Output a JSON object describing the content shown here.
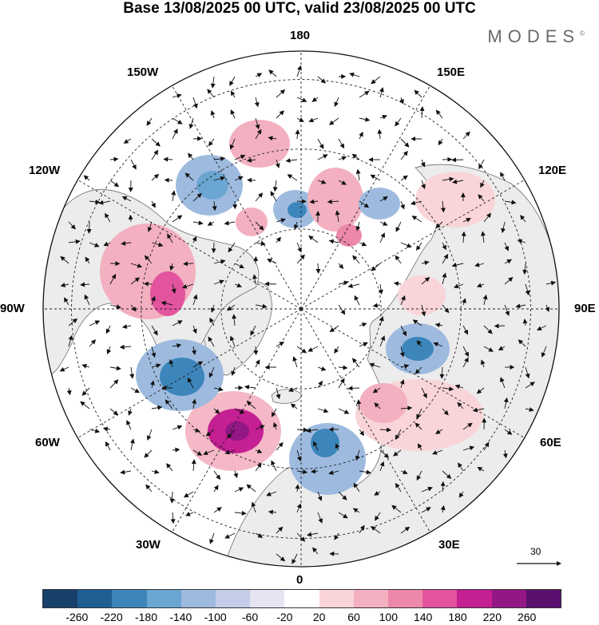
{
  "header": {
    "title": "Base 13/08/2025 00 UTC, valid 23/08/2025 00 UTC",
    "brand": "MODES",
    "brand_mark": "©"
  },
  "longitude_labels": {
    "lon_180": "180",
    "lon_150e": "150E",
    "lon_120e": "120E",
    "lon_90e": "90E",
    "lon_60e": "60E",
    "lon_30e": "30E",
    "lon_0": "0",
    "lon_30w": "30W",
    "lon_60w": "60W",
    "lon_90w": "90W",
    "lon_120w": "120W",
    "lon_150w": "150W"
  },
  "wind_reference": {
    "value": "30"
  },
  "colorbar": {
    "ticks": [
      "-260",
      "-220",
      "-180",
      "-140",
      "-100",
      "-60",
      "-20",
      "20",
      "60",
      "100",
      "140",
      "180",
      "220",
      "260"
    ],
    "colors": [
      "#17406b",
      "#1f5f93",
      "#3d86bb",
      "#6aa6d1",
      "#9ebbdf",
      "#c3cde8",
      "#e4e4f2",
      "#ffffff",
      "#f9d5d9",
      "#f3b0c0",
      "#ec88aa",
      "#e2549e",
      "#c41f93",
      "#931787",
      "#5b0f6f"
    ]
  },
  "colors": {
    "land": "#ececec",
    "ocean": "#ffffff",
    "coast": "#6e6e6e",
    "grid": "#222222"
  }
}
